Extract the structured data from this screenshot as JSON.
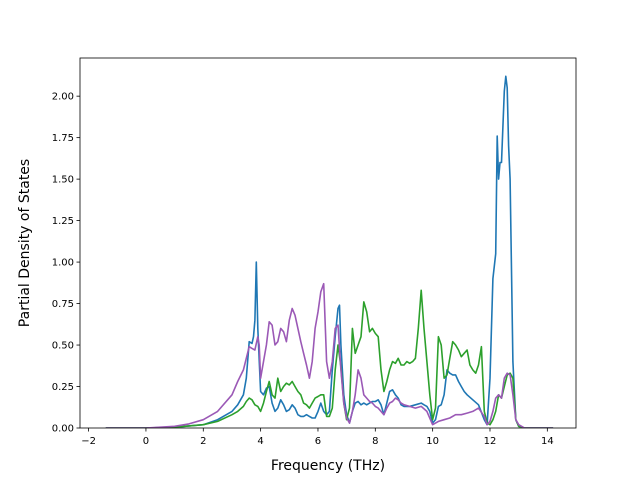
{
  "chart_data": {
    "type": "line",
    "title": "",
    "xlabel": "Frequency (THz)",
    "ylabel": "Partial Density of States",
    "xlim": [
      -2.3,
      15.0
    ],
    "ylim": [
      0.0,
      2.23
    ],
    "xticks": [
      -2,
      0,
      2,
      4,
      6,
      8,
      10,
      12,
      14
    ],
    "xtick_labels": [
      "−2",
      "0",
      "2",
      "4",
      "6",
      "8",
      "10",
      "12",
      "14"
    ],
    "yticks": [
      0.0,
      0.25,
      0.5,
      0.75,
      1.0,
      1.25,
      1.5,
      1.75,
      2.0
    ],
    "ytick_labels": [
      "0.00",
      "0.25",
      "0.50",
      "0.75",
      "1.00",
      "1.25",
      "1.50",
      "1.75",
      "2.00"
    ],
    "grid": false,
    "legend": "none",
    "series": [
      {
        "color": "#1f77b4",
        "x": [
          -1.4,
          0.0,
          1.0,
          2.0,
          2.5,
          3.0,
          3.2,
          3.4,
          3.5,
          3.6,
          3.7,
          3.75,
          3.8,
          3.85,
          3.9,
          4.0,
          4.1,
          4.2,
          4.3,
          4.4,
          4.5,
          4.6,
          4.7,
          4.8,
          4.9,
          5.0,
          5.1,
          5.2,
          5.3,
          5.4,
          5.5,
          5.6,
          5.7,
          5.8,
          5.9,
          6.0,
          6.1,
          6.2,
          6.3,
          6.4,
          6.5,
          6.6,
          6.7,
          6.75,
          6.8,
          6.9,
          7.0,
          7.1,
          7.2,
          7.3,
          7.4,
          7.5,
          7.6,
          7.7,
          7.8,
          7.9,
          8.0,
          8.1,
          8.2,
          8.3,
          8.4,
          8.5,
          8.6,
          8.7,
          8.8,
          8.9,
          9.0,
          9.2,
          9.4,
          9.6,
          9.7,
          9.8,
          9.9,
          10.0,
          10.1,
          10.2,
          10.3,
          10.4,
          10.5,
          10.6,
          10.7,
          10.8,
          10.9,
          11.0,
          11.1,
          11.2,
          11.4,
          11.6,
          11.8,
          11.9,
          12.0,
          12.1,
          12.2,
          12.25,
          12.3,
          12.35,
          12.4,
          12.5,
          12.55,
          12.6,
          12.65,
          12.7,
          12.8,
          12.9,
          13.0,
          13.2,
          14.2
        ],
        "y": [
          0.0,
          0.0,
          0.005,
          0.02,
          0.05,
          0.1,
          0.14,
          0.2,
          0.3,
          0.52,
          0.51,
          0.55,
          0.65,
          1.0,
          0.6,
          0.22,
          0.2,
          0.24,
          0.25,
          0.15,
          0.1,
          0.12,
          0.17,
          0.14,
          0.1,
          0.11,
          0.14,
          0.12,
          0.08,
          0.07,
          0.07,
          0.08,
          0.07,
          0.06,
          0.06,
          0.1,
          0.15,
          0.1,
          0.08,
          0.1,
          0.35,
          0.55,
          0.72,
          0.74,
          0.5,
          0.2,
          0.08,
          0.03,
          0.1,
          0.15,
          0.16,
          0.14,
          0.15,
          0.14,
          0.15,
          0.16,
          0.16,
          0.17,
          0.14,
          0.08,
          0.15,
          0.22,
          0.23,
          0.2,
          0.18,
          0.14,
          0.13,
          0.13,
          0.14,
          0.15,
          0.14,
          0.13,
          0.1,
          0.03,
          0.05,
          0.13,
          0.14,
          0.2,
          0.35,
          0.33,
          0.32,
          0.32,
          0.28,
          0.25,
          0.22,
          0.2,
          0.17,
          0.14,
          0.05,
          0.02,
          0.3,
          0.9,
          1.05,
          1.76,
          1.5,
          1.6,
          1.6,
          2.03,
          2.12,
          2.05,
          1.7,
          1.5,
          0.4,
          0.05,
          0.01,
          0.0,
          0.0
        ]
      },
      {
        "color": "#2ca02c",
        "x": [
          -1.4,
          0.0,
          1.0,
          2.0,
          2.5,
          3.0,
          3.2,
          3.4,
          3.5,
          3.6,
          3.7,
          3.8,
          3.9,
          4.0,
          4.1,
          4.2,
          4.3,
          4.4,
          4.5,
          4.6,
          4.7,
          4.8,
          4.9,
          5.0,
          5.1,
          5.2,
          5.3,
          5.4,
          5.5,
          5.6,
          5.7,
          5.8,
          5.9,
          6.0,
          6.1,
          6.2,
          6.3,
          6.4,
          6.5,
          6.6,
          6.7,
          6.8,
          6.9,
          7.0,
          7.1,
          7.2,
          7.3,
          7.4,
          7.5,
          7.6,
          7.7,
          7.8,
          7.9,
          8.0,
          8.1,
          8.2,
          8.3,
          8.4,
          8.5,
          8.6,
          8.7,
          8.8,
          8.9,
          9.0,
          9.1,
          9.2,
          9.3,
          9.4,
          9.5,
          9.6,
          9.7,
          9.8,
          9.9,
          10.0,
          10.1,
          10.2,
          10.3,
          10.4,
          10.5,
          10.6,
          10.7,
          10.8,
          10.9,
          11.0,
          11.1,
          11.2,
          11.3,
          11.4,
          11.5,
          11.6,
          11.7,
          11.8,
          11.9,
          12.0,
          12.1,
          12.2,
          12.3,
          12.4,
          12.5,
          12.6,
          12.7,
          12.8,
          12.9,
          13.0,
          13.2,
          14.2
        ],
        "y": [
          0.0,
          0.0,
          0.005,
          0.02,
          0.04,
          0.08,
          0.1,
          0.13,
          0.16,
          0.18,
          0.17,
          0.14,
          0.13,
          0.1,
          0.15,
          0.22,
          0.28,
          0.2,
          0.18,
          0.3,
          0.22,
          0.25,
          0.27,
          0.26,
          0.28,
          0.25,
          0.22,
          0.2,
          0.15,
          0.14,
          0.12,
          0.15,
          0.18,
          0.19,
          0.2,
          0.2,
          0.07,
          0.07,
          0.12,
          0.35,
          0.5,
          0.37,
          0.15,
          0.05,
          0.12,
          0.6,
          0.45,
          0.5,
          0.55,
          0.76,
          0.7,
          0.58,
          0.6,
          0.57,
          0.55,
          0.35,
          0.22,
          0.28,
          0.35,
          0.4,
          0.39,
          0.42,
          0.38,
          0.38,
          0.4,
          0.39,
          0.4,
          0.42,
          0.6,
          0.83,
          0.6,
          0.4,
          0.2,
          0.05,
          0.12,
          0.55,
          0.5,
          0.3,
          0.32,
          0.42,
          0.52,
          0.5,
          0.47,
          0.43,
          0.45,
          0.47,
          0.38,
          0.35,
          0.33,
          0.38,
          0.49,
          0.1,
          0.03,
          0.02,
          0.05,
          0.1,
          0.2,
          0.18,
          0.25,
          0.32,
          0.33,
          0.3,
          0.05,
          0.01,
          0.0,
          0.0
        ]
      },
      {
        "color": "#9b59b6",
        "x": [
          -1.4,
          0.0,
          1.0,
          1.5,
          2.0,
          2.5,
          3.0,
          3.2,
          3.4,
          3.5,
          3.6,
          3.7,
          3.8,
          3.9,
          3.95,
          4.0,
          4.1,
          4.2,
          4.3,
          4.4,
          4.5,
          4.6,
          4.7,
          4.8,
          4.9,
          5.0,
          5.1,
          5.2,
          5.3,
          5.4,
          5.5,
          5.6,
          5.7,
          5.8,
          5.9,
          6.0,
          6.1,
          6.2,
          6.3,
          6.4,
          6.5,
          6.6,
          6.7,
          6.8,
          6.9,
          7.0,
          7.1,
          7.2,
          7.3,
          7.4,
          7.5,
          7.6,
          7.7,
          7.8,
          7.9,
          8.0,
          8.1,
          8.2,
          8.3,
          8.4,
          8.5,
          8.6,
          8.7,
          8.8,
          8.9,
          9.0,
          9.2,
          9.4,
          9.6,
          9.8,
          10.0,
          10.2,
          10.4,
          10.6,
          10.8,
          11.0,
          11.2,
          11.4,
          11.6,
          11.8,
          11.9,
          12.0,
          12.1,
          12.2,
          12.3,
          12.4,
          12.5,
          12.6,
          12.7,
          12.8,
          12.9,
          13.0,
          13.2,
          14.2
        ],
        "y": [
          0.0,
          0.0,
          0.01,
          0.025,
          0.05,
          0.1,
          0.2,
          0.28,
          0.35,
          0.42,
          0.49,
          0.48,
          0.47,
          0.55,
          0.5,
          0.3,
          0.4,
          0.5,
          0.64,
          0.62,
          0.5,
          0.52,
          0.6,
          0.58,
          0.52,
          0.65,
          0.72,
          0.68,
          0.6,
          0.52,
          0.45,
          0.38,
          0.3,
          0.4,
          0.6,
          0.7,
          0.82,
          0.87,
          0.4,
          0.3,
          0.4,
          0.6,
          0.62,
          0.35,
          0.15,
          0.06,
          0.03,
          0.1,
          0.2,
          0.35,
          0.3,
          0.2,
          0.18,
          0.16,
          0.15,
          0.13,
          0.12,
          0.1,
          0.08,
          0.12,
          0.15,
          0.16,
          0.18,
          0.17,
          0.15,
          0.14,
          0.13,
          0.12,
          0.13,
          0.1,
          0.02,
          0.04,
          0.05,
          0.06,
          0.08,
          0.08,
          0.09,
          0.1,
          0.12,
          0.07,
          0.02,
          0.04,
          0.1,
          0.18,
          0.2,
          0.18,
          0.3,
          0.33,
          0.32,
          0.2,
          0.05,
          0.02,
          0.0,
          0.0
        ]
      }
    ]
  }
}
